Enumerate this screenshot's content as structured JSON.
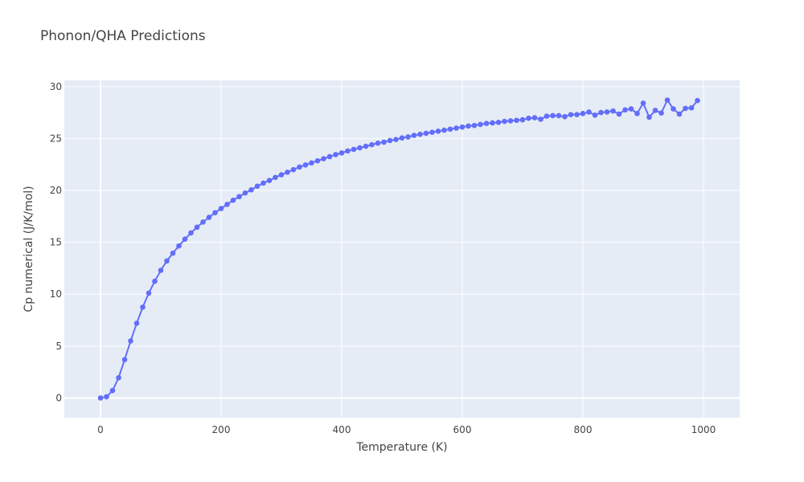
{
  "chart_data": {
    "type": "line",
    "title": "Phonon/QHA Predictions",
    "xlabel": "Temperature (K)",
    "ylabel": "Cp numerical (J/K/mol)",
    "xlim": [
      -60,
      1060
    ],
    "ylim": [
      -1.9,
      30.6
    ],
    "xticks": [
      0,
      200,
      400,
      600,
      800,
      1000
    ],
    "yticks": [
      0,
      5,
      10,
      15,
      20,
      25,
      30
    ],
    "grid": true,
    "legend": "none",
    "colors": {
      "series": "#636efa",
      "plot_bg": "#e5ecf6"
    },
    "series": [
      {
        "mode": "lines+markers",
        "x": [
          0,
          10,
          20,
          30,
          40,
          50,
          60,
          70,
          80,
          90,
          100,
          110,
          120,
          130,
          140,
          150,
          160,
          170,
          180,
          190,
          200,
          210,
          220,
          230,
          240,
          250,
          260,
          270,
          280,
          290,
          300,
          310,
          320,
          330,
          340,
          350,
          360,
          370,
          380,
          390,
          400,
          410,
          420,
          430,
          440,
          450,
          460,
          470,
          480,
          490,
          500,
          510,
          520,
          530,
          540,
          550,
          560,
          570,
          580,
          590,
          600,
          610,
          620,
          630,
          640,
          650,
          660,
          670,
          680,
          690,
          700,
          710,
          720,
          730,
          740,
          750,
          760,
          770,
          780,
          790,
          800,
          810,
          820,
          830,
          840,
          850,
          860,
          870,
          880,
          890,
          900,
          910,
          920,
          930,
          940,
          950,
          960,
          970,
          980,
          990
        ],
        "y": [
          0.0,
          0.12,
          0.72,
          1.95,
          3.7,
          5.5,
          7.2,
          8.75,
          10.1,
          11.25,
          12.3,
          13.2,
          13.95,
          14.65,
          15.3,
          15.9,
          16.45,
          16.95,
          17.4,
          17.85,
          18.25,
          18.65,
          19.05,
          19.4,
          19.75,
          20.05,
          20.4,
          20.7,
          20.95,
          21.25,
          21.5,
          21.75,
          22.0,
          22.25,
          22.45,
          22.65,
          22.85,
          23.05,
          23.25,
          23.45,
          23.6,
          23.8,
          23.95,
          24.1,
          24.25,
          24.4,
          24.55,
          24.65,
          24.8,
          24.9,
          25.05,
          25.15,
          25.3,
          25.4,
          25.5,
          25.6,
          25.7,
          25.8,
          25.9,
          26.0,
          26.1,
          26.2,
          26.25,
          26.35,
          26.45,
          26.5,
          26.55,
          26.65,
          26.7,
          26.75,
          26.8,
          26.95,
          27.0,
          26.85,
          27.15,
          27.2,
          27.2,
          27.1,
          27.3,
          27.3,
          27.4,
          27.55,
          27.25,
          27.5,
          27.55,
          27.65,
          27.35,
          27.75,
          27.85,
          27.4,
          28.4,
          27.05,
          27.7,
          27.45,
          28.7,
          27.85,
          27.35,
          27.9,
          27.95,
          28.65
        ]
      }
    ]
  }
}
